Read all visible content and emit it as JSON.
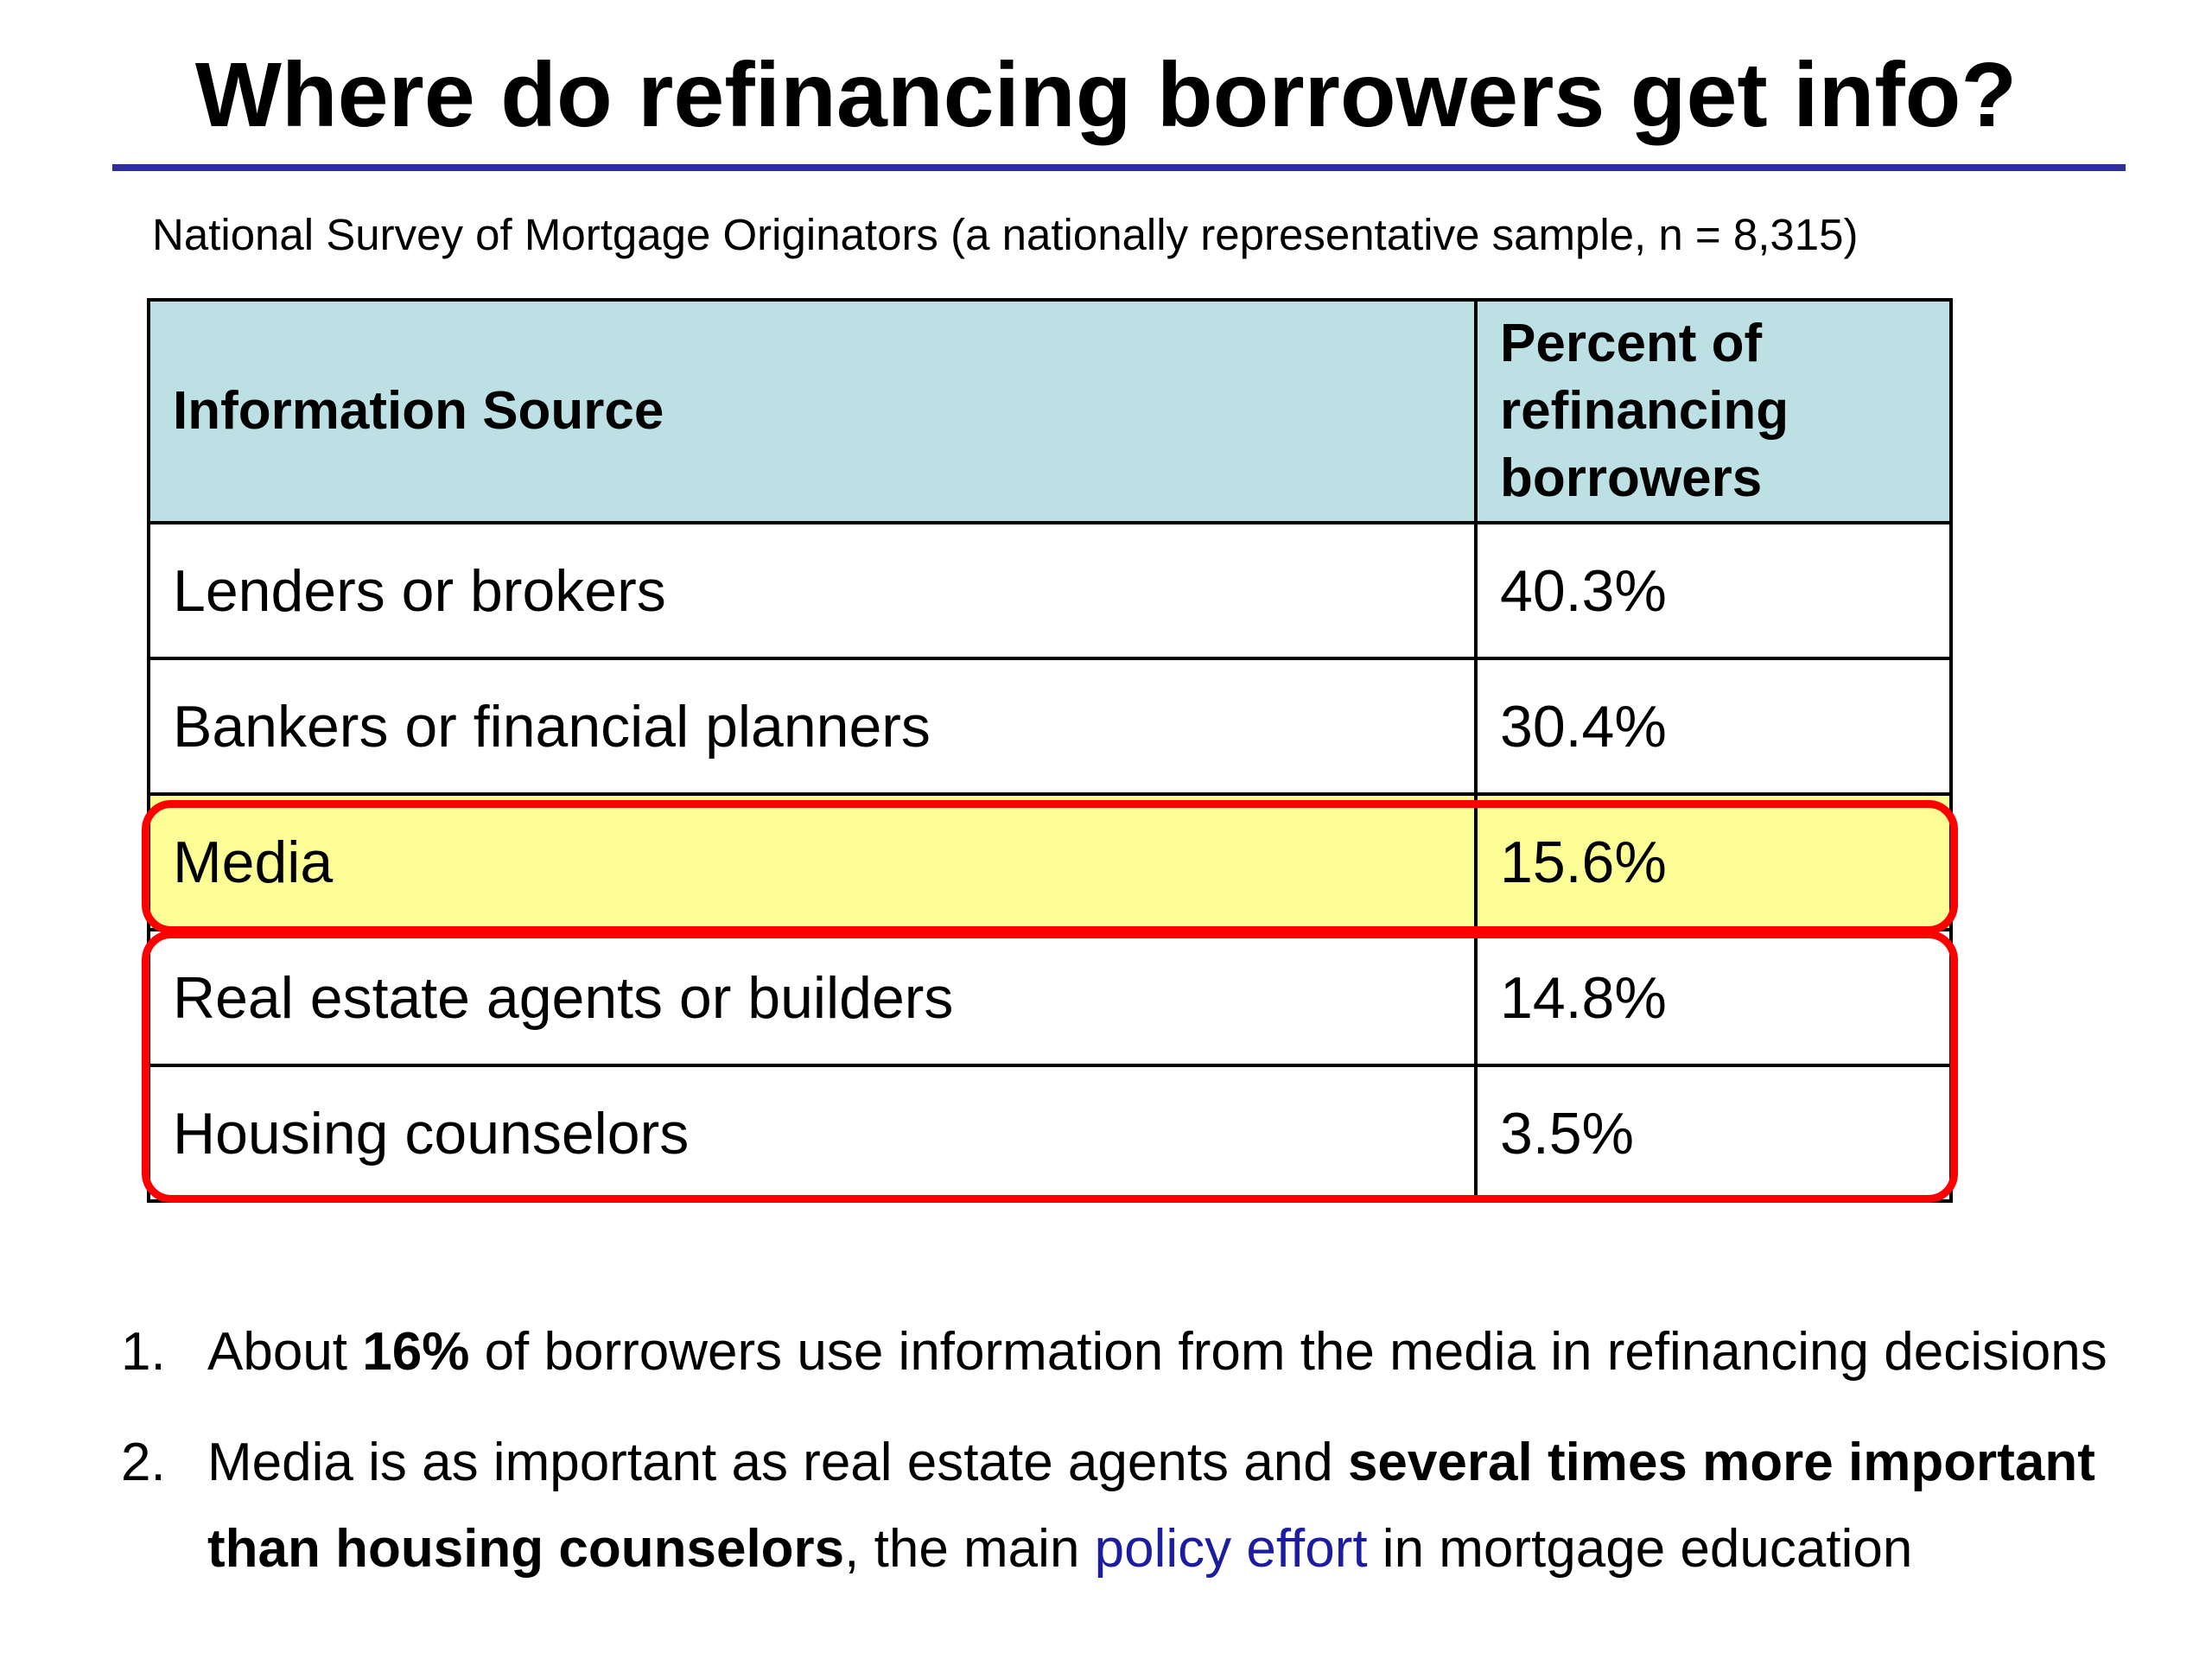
{
  "title": "Where do refinancing borrowers get info?",
  "subtitle": "National Survey of Mortgage Originators (a nationally representative sample, n = 8,315)",
  "table": {
    "headers": [
      "Information Source",
      "Percent of refinancing borrowers"
    ],
    "rows": [
      {
        "source": "Lenders or brokers",
        "percent": "40.3%"
      },
      {
        "source": "Bankers or financial planners",
        "percent": "30.4%"
      },
      {
        "source": "Media",
        "percent": "15.6%"
      },
      {
        "source": "Real estate agents or builders",
        "percent": "14.8%"
      },
      {
        "source": "Housing counselors",
        "percent": "3.5%"
      }
    ],
    "highlighted_row": "Media"
  },
  "findings": [
    {
      "number": "1.",
      "parts": [
        "About ",
        "16%",
        " of borrowers use information from the media in refinancing decisions"
      ]
    },
    {
      "number": "2.",
      "parts": [
        "Media is as important as real estate agents and ",
        "several times more important than housing counselors",
        ", the main ",
        "policy effort",
        " in mortgage education"
      ]
    }
  ],
  "colors": {
    "title_rule": "#2f2f9a",
    "header_fill": "#bde0e4",
    "highlight_fill": "#fdfd96",
    "callout_outline": "#ff0000",
    "link_text": "#1c1ca0"
  }
}
